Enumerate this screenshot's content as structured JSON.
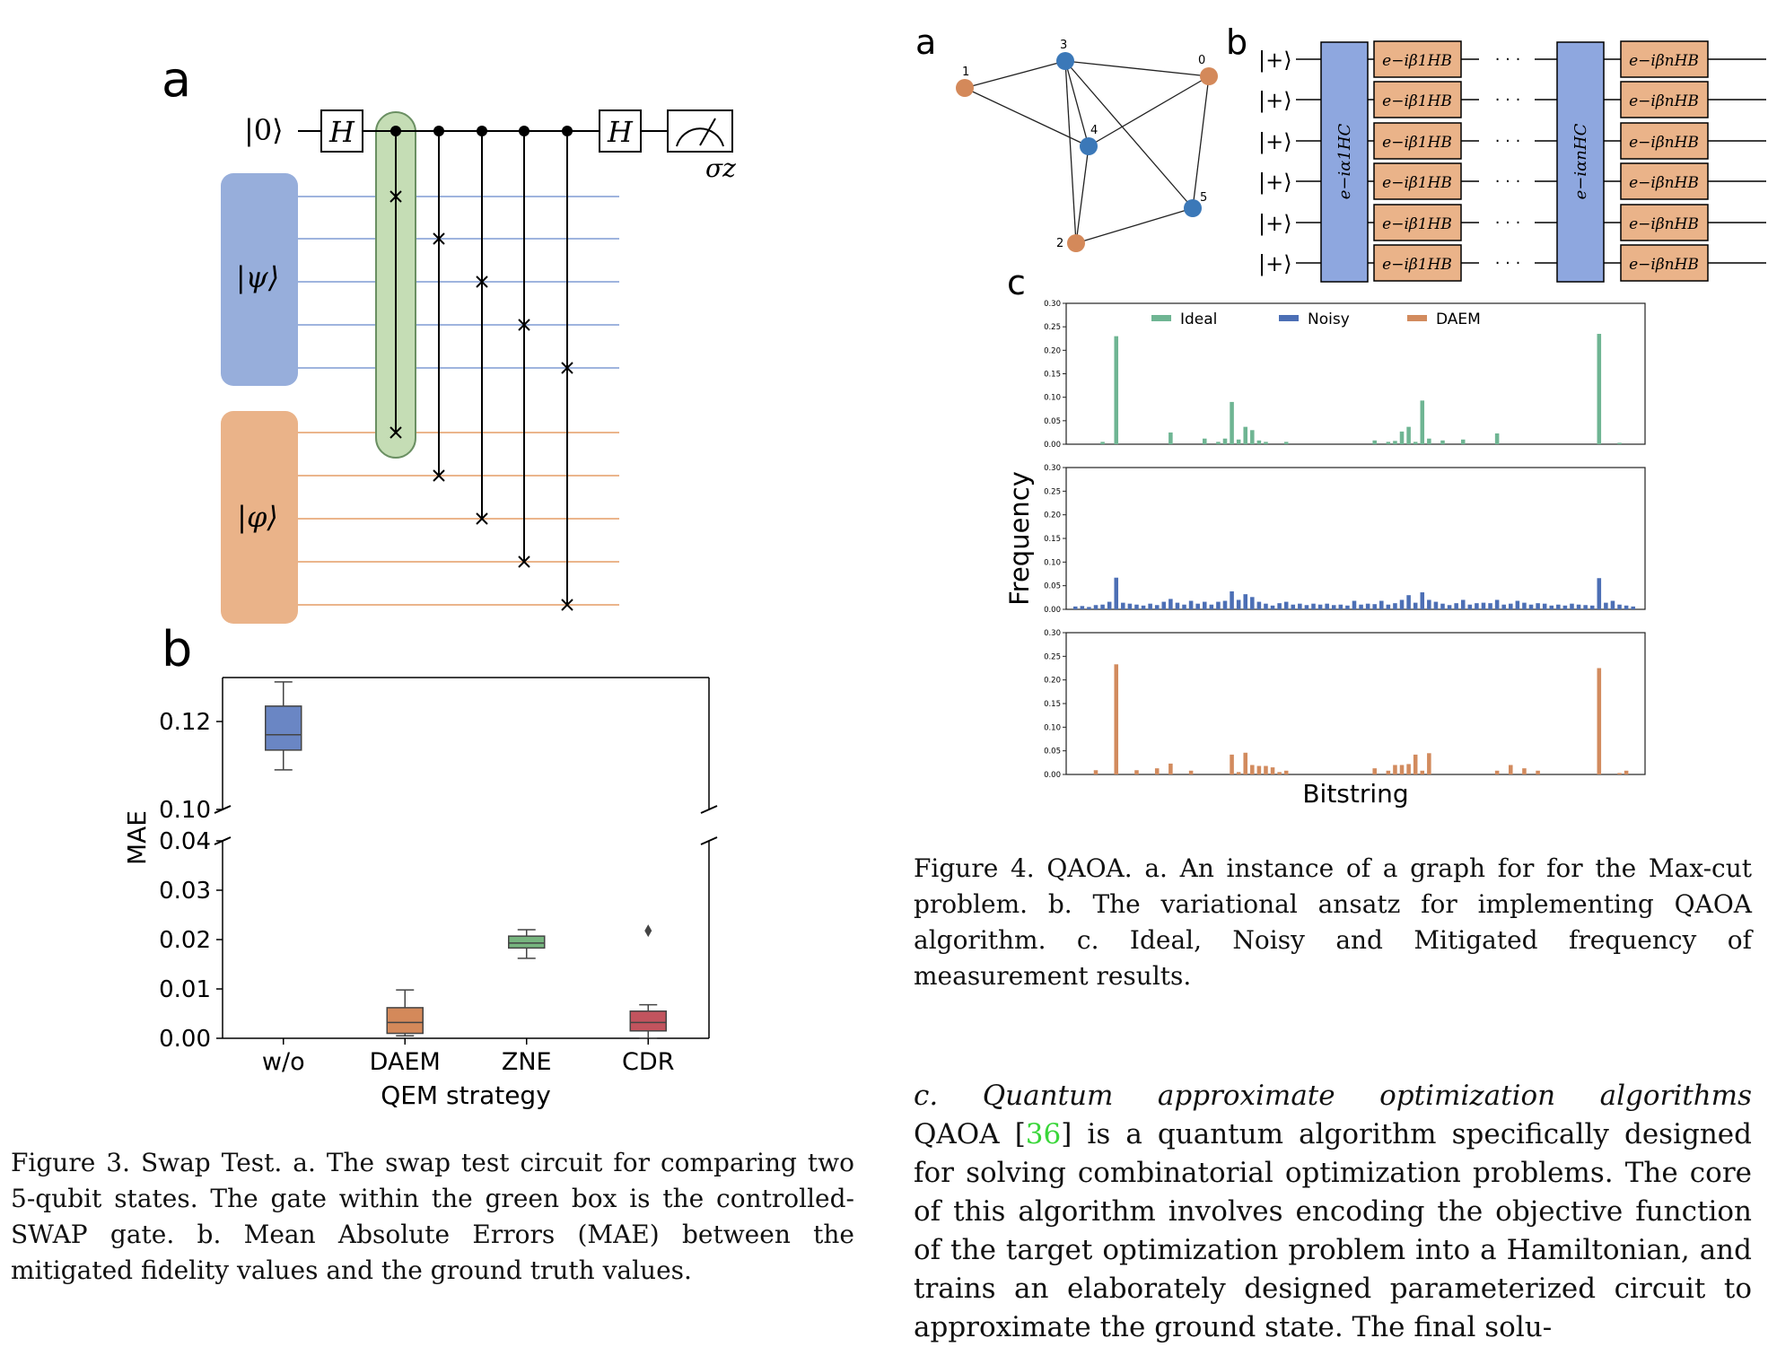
{
  "fig3": {
    "panel_a_label": "a",
    "panel_b_label": "b",
    "circuit": {
      "ket0": "|0⟩",
      "gate_h": "H",
      "meas_label": "σz",
      "psi": "|ψ⟩",
      "phi": "|φ⟩"
    },
    "caption": "Figure 3.  Swap Test.  a. The swap test circuit for comparing two 5-qubit states. The gate within the green box is the controlled-SWAP gate. b. Mean Absolute Errors (MAE) between the mitigated fidelity values and the ground truth values."
  },
  "fig4": {
    "panel_a_label": "a",
    "panel_b_label": "b",
    "panel_c_label": "c",
    "graph": {
      "nodes": [
        {
          "id": "0",
          "color": "orange"
        },
        {
          "id": "1",
          "color": "orange"
        },
        {
          "id": "2",
          "color": "orange"
        },
        {
          "id": "3",
          "color": "blue"
        },
        {
          "id": "4",
          "color": "blue"
        },
        {
          "id": "5",
          "color": "blue"
        }
      ]
    },
    "ansatz": {
      "plus_state": "|+⟩",
      "hc1": "e−iα1HC",
      "hcn": "e−iαnHC",
      "hb1": "e−iβ1HB",
      "hbn": "e−iβnHB",
      "dots": "· · ·"
    },
    "caption": "Figure 4. QAOA. a. An instance of a graph for for the Max-cut problem.  b. The variational ansatz for implementing QAOA algorithm.  c. Ideal, Noisy and Mitigated frequency of measurement results."
  },
  "paragraph": {
    "heading": "c.  Quantum approximate optimization algorithms",
    "ref": "36",
    "text_before_ref": "QAOA [",
    "text_after_ref": "] is a quantum algorithm specifically designed for solving combinatorial optimization problems.  The core of this algorithm involves encoding the objective function of the target optimization problem into a Hamiltonian, and trains an elaborately designed parameterized circuit to approximate the ground state. The final solu-"
  },
  "colors": {
    "blue": "#6a86c4",
    "blue_fill": "#97aedb",
    "orange": "#d4895a",
    "orange_fill": "#eab389",
    "green": "#77b57f",
    "green_fill": "#c5ddb5",
    "red": "#c2545e",
    "ideal": "#6fb593",
    "noisy": "#4c6fb5",
    "daem": "#d28b5e"
  },
  "chart_data": [
    {
      "type": "box",
      "panel": "Figure 3b",
      "xlabel": "QEM strategy",
      "ylabel": "MAE",
      "categories": [
        "w/o",
        "DAEM",
        "ZNE",
        "CDR"
      ],
      "broken_axis": true,
      "upper_ylim": [
        0.1,
        0.13
      ],
      "upper_ticks": [
        "0.10",
        "0.12"
      ],
      "lower_ylim": [
        0.0,
        0.04
      ],
      "lower_ticks": [
        "0.00",
        "0.01",
        "0.02",
        "0.03",
        "0.04"
      ],
      "boxes": [
        {
          "name": "w/o",
          "min": 0.109,
          "q1": 0.1135,
          "median": 0.117,
          "q3": 0.1235,
          "max": 0.129
        },
        {
          "name": "DAEM",
          "min": 0.0005,
          "q1": 0.001,
          "median": 0.0032,
          "q3": 0.0062,
          "max": 0.0098
        },
        {
          "name": "ZNE",
          "min": 0.0162,
          "q1": 0.0183,
          "median": 0.0193,
          "q3": 0.0207,
          "max": 0.022
        },
        {
          "name": "CDR",
          "min": 0.0,
          "q1": 0.0015,
          "median": 0.0032,
          "q3": 0.0055,
          "max": 0.0068,
          "outliers": [
            0.0218
          ]
        }
      ]
    },
    {
      "type": "bar",
      "panel": "Figure 4c",
      "xlabel": "Bitstring",
      "ylabel": "Frequency",
      "ylim": [
        0,
        0.3
      ],
      "yticks": [
        "0.00",
        "0.05",
        "0.10",
        "0.15",
        "0.20",
        "0.25",
        "0.30"
      ],
      "legend": [
        "Ideal",
        "Noisy",
        "DAEM"
      ],
      "series": [
        {
          "name": "Ideal",
          "values": [
            0,
            0,
            0,
            0,
            0.005,
            0,
            0.23,
            0,
            0,
            0,
            0,
            0,
            0,
            0,
            0.025,
            0,
            0,
            0,
            0,
            0.012,
            0,
            0.005,
            0.012,
            0.09,
            0.01,
            0.037,
            0.03,
            0.008,
            0.005,
            0,
            0,
            0.005,
            0,
            0,
            0,
            0,
            0,
            0,
            0,
            0,
            0,
            0,
            0,
            0,
            0.008,
            0,
            0.005,
            0.007,
            0.027,
            0.037,
            0.005,
            0.093,
            0.012,
            0,
            0.008,
            0,
            0,
            0.01,
            0,
            0,
            0,
            0,
            0.023,
            0,
            0,
            0,
            0,
            0,
            0,
            0,
            0,
            0,
            0,
            0,
            0,
            0,
            0,
            0.235,
            0,
            0,
            0.003,
            0,
            0
          ]
        },
        {
          "name": "Noisy",
          "values": [
            0.006,
            0.007,
            0.005,
            0.009,
            0.01,
            0.016,
            0.067,
            0.014,
            0.012,
            0.01,
            0.008,
            0.012,
            0.009,
            0.016,
            0.022,
            0.014,
            0.01,
            0.018,
            0.012,
            0.016,
            0.01,
            0.016,
            0.018,
            0.038,
            0.02,
            0.032,
            0.026,
            0.016,
            0.012,
            0.008,
            0.013,
            0.016,
            0.01,
            0.012,
            0.009,
            0.012,
            0.01,
            0.012,
            0.009,
            0.01,
            0.008,
            0.018,
            0.01,
            0.012,
            0.011,
            0.018,
            0.01,
            0.013,
            0.02,
            0.03,
            0.014,
            0.036,
            0.02,
            0.016,
            0.012,
            0.009,
            0.013,
            0.02,
            0.01,
            0.013,
            0.014,
            0.013,
            0.02,
            0.01,
            0.012,
            0.018,
            0.014,
            0.01,
            0.013,
            0.012,
            0.008,
            0.01,
            0.008,
            0.012,
            0.01,
            0.009,
            0.008,
            0.066,
            0.014,
            0.018,
            0.01,
            0.008,
            0.006
          ]
        },
        {
          "name": "DAEM",
          "values": [
            0,
            0,
            0,
            0.009,
            0,
            0,
            0.233,
            0,
            0,
            0.009,
            0,
            0,
            0.013,
            0,
            0.023,
            0,
            0,
            0.008,
            0,
            0,
            0,
            0,
            0,
            0.042,
            0.005,
            0.046,
            0.02,
            0.018,
            0.018,
            0.015,
            0.005,
            0.008,
            0,
            0,
            0,
            0,
            0,
            0,
            0,
            0,
            0,
            0,
            0,
            0,
            0.013,
            0,
            0.008,
            0.02,
            0.02,
            0.022,
            0.042,
            0.008,
            0.045,
            0,
            0,
            0,
            0,
            0,
            0,
            0,
            0,
            0,
            0.008,
            0,
            0.02,
            0,
            0.013,
            0,
            0.008,
            0,
            0,
            0,
            0,
            0,
            0,
            0,
            0,
            0.225,
            0,
            0,
            0.003,
            0.008,
            0
          ]
        }
      ]
    }
  ]
}
